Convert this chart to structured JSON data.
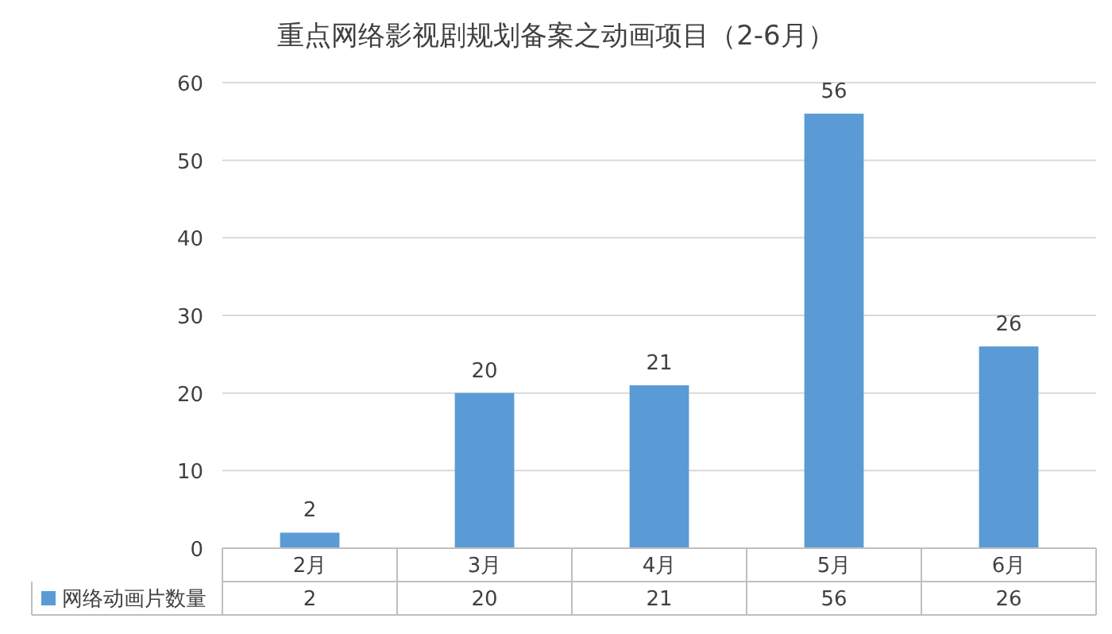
{
  "chart_data": {
    "type": "bar",
    "title": "重点网络影视剧规划备案之动画项目（2-6月）",
    "categories": [
      "2月",
      "3月",
      "4月",
      "5月",
      "6月"
    ],
    "series": [
      {
        "name": "网络动画片数量",
        "color": "#5b9bd5",
        "values": [
          2,
          20,
          21,
          56,
          26
        ],
        "value_labels": [
          "2",
          "20",
          "21",
          "56",
          "26"
        ]
      }
    ],
    "ylim": [
      0,
      60
    ],
    "yticks": [
      0,
      10,
      20,
      30,
      40,
      50,
      60
    ],
    "grid": "y",
    "data_labels": true,
    "legend": "bottom",
    "annotations": [
      "2",
      "20",
      "21",
      "56",
      "26"
    ]
  }
}
